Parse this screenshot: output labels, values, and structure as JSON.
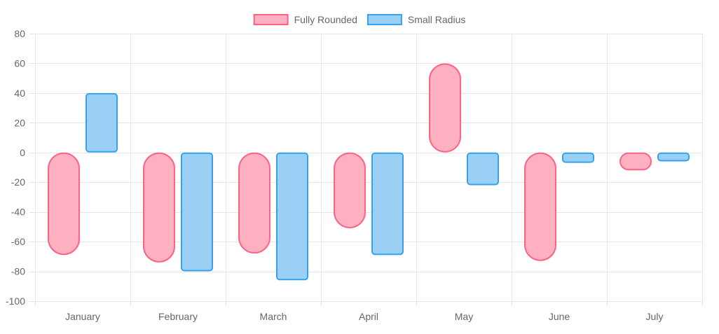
{
  "chart_data": {
    "type": "bar",
    "categories": [
      "January",
      "February",
      "March",
      "April",
      "May",
      "June",
      "July"
    ],
    "series": [
      {
        "name": "Fully Rounded",
        "values": [
          -69,
          -74,
          -68,
          -51,
          60,
          -73,
          -12
        ],
        "fill": "#ffb1c1",
        "stroke": "#ff6384",
        "corner_style": "fully-rounded"
      },
      {
        "name": "Small Radius",
        "values": [
          40,
          -80,
          -86,
          -69,
          -22,
          -7,
          -6
        ],
        "fill": "#9ad0f5",
        "stroke": "#36a2eb",
        "corner_style": "small-radius"
      }
    ],
    "ylim": [
      -100,
      80
    ],
    "yticks": [
      80,
      60,
      40,
      20,
      0,
      -20,
      -40,
      -60,
      -80,
      -100
    ],
    "grid": true,
    "legend": "top-center",
    "title": "",
    "xlabel": "",
    "ylabel": ""
  }
}
